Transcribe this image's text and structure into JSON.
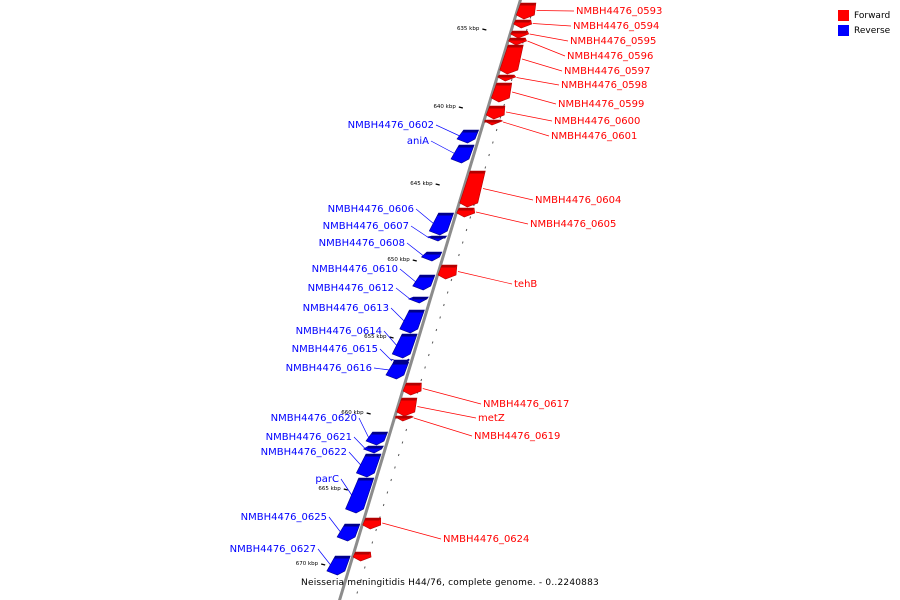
{
  "legend": {
    "forward": {
      "label": "Forward",
      "color": "#ff0000"
    },
    "reverse": {
      "label": "Reverse",
      "color": "#0000ff"
    }
  },
  "caption": "Neisseria meningitidis H44/76, complete genome. - 0..2240883",
  "scale_labels": [
    "635 kbp",
    "640 kbp",
    "645 kbp",
    "650 kbp",
    "655 kbp",
    "660 kbp",
    "665 kbp",
    "670 kbp"
  ],
  "forward_genes": [
    "NMBH4476_0593",
    "NMBH4476_0594",
    "NMBH4476_0595",
    "NMBH4476_0596",
    "NMBH4476_0597",
    "NMBH4476_0598",
    "NMBH4476_0599",
    "NMBH4476_0600",
    "NMBH4476_0601",
    "NMBH4476_0604",
    "NMBH4476_0605",
    "tehB",
    "NMBH4476_0617",
    "metZ",
    "NMBH4476_0619",
    "NMBH4476_0624"
  ],
  "reverse_genes": [
    "NMBH4476_0602",
    "aniA",
    "NMBH4476_0606",
    "NMBH4476_0607",
    "NMBH4476_0608",
    "NMBH4476_0610",
    "NMBH4476_0612",
    "NMBH4476_0613",
    "NMBH4476_0614",
    "NMBH4476_0615",
    "NMBH4476_0616",
    "NMBH4476_0620",
    "NMBH4476_0621",
    "NMBH4476_0622",
    "parC",
    "NMBH4476_0625",
    "NMBH4476_0627"
  ]
}
